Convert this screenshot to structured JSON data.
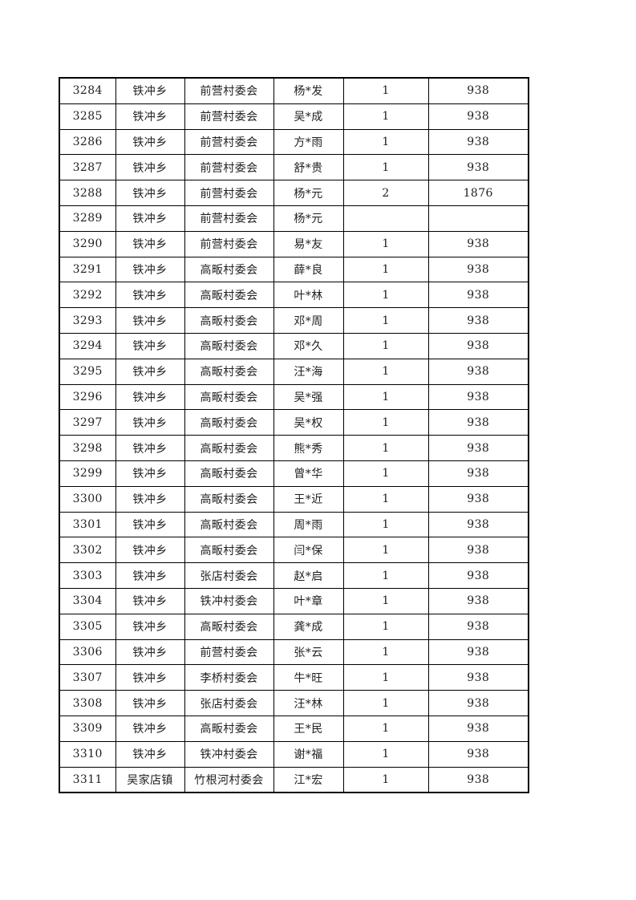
{
  "colors": {
    "page_background": "#ffffff",
    "table_border": "#000000",
    "table_text": "#1f1f1f"
  },
  "table": {
    "rows": [
      [
        "3284",
        "铁冲乡",
        "前营村委会",
        "杨*发",
        "1",
        "938"
      ],
      [
        "3285",
        "铁冲乡",
        "前营村委会",
        "吴*成",
        "1",
        "938"
      ],
      [
        "3286",
        "铁冲乡",
        "前营村委会",
        "方*雨",
        "1",
        "938"
      ],
      [
        "3287",
        "铁冲乡",
        "前营村委会",
        "舒*贵",
        "1",
        "938"
      ],
      [
        "3288",
        "铁冲乡",
        "前营村委会",
        "杨*元",
        "2",
        "1876"
      ],
      [
        "3289",
        "铁冲乡",
        "前营村委会",
        "杨*元",
        "",
        ""
      ],
      [
        "3290",
        "铁冲乡",
        "前营村委会",
        "易*友",
        "1",
        "938"
      ],
      [
        "3291",
        "铁冲乡",
        "高畈村委会",
        "薛*良",
        "1",
        "938"
      ],
      [
        "3292",
        "铁冲乡",
        "高畈村委会",
        "叶*林",
        "1",
        "938"
      ],
      [
        "3293",
        "铁冲乡",
        "高畈村委会",
        "邓*周",
        "1",
        "938"
      ],
      [
        "3294",
        "铁冲乡",
        "高畈村委会",
        "邓*久",
        "1",
        "938"
      ],
      [
        "3295",
        "铁冲乡",
        "高畈村委会",
        "汪*海",
        "1",
        "938"
      ],
      [
        "3296",
        "铁冲乡",
        "高畈村委会",
        "吴*强",
        "1",
        "938"
      ],
      [
        "3297",
        "铁冲乡",
        "高畈村委会",
        "吴*权",
        "1",
        "938"
      ],
      [
        "3298",
        "铁冲乡",
        "高畈村委会",
        "熊*秀",
        "1",
        "938"
      ],
      [
        "3299",
        "铁冲乡",
        "高畈村委会",
        "曾*华",
        "1",
        "938"
      ],
      [
        "3300",
        "铁冲乡",
        "高畈村委会",
        "王*近",
        "1",
        "938"
      ],
      [
        "3301",
        "铁冲乡",
        "高畈村委会",
        "周*雨",
        "1",
        "938"
      ],
      [
        "3302",
        "铁冲乡",
        "高畈村委会",
        "闫*保",
        "1",
        "938"
      ],
      [
        "3303",
        "铁冲乡",
        "张店村委会",
        "赵*启",
        "1",
        "938"
      ],
      [
        "3304",
        "铁冲乡",
        "铁冲村委会",
        "叶*章",
        "1",
        "938"
      ],
      [
        "3305",
        "铁冲乡",
        "高畈村委会",
        "龚*成",
        "1",
        "938"
      ],
      [
        "3306",
        "铁冲乡",
        "前营村委会",
        "张*云",
        "1",
        "938"
      ],
      [
        "3307",
        "铁冲乡",
        "李桥村委会",
        "牛*旺",
        "1",
        "938"
      ],
      [
        "3308",
        "铁冲乡",
        "张店村委会",
        "汪*林",
        "1",
        "938"
      ],
      [
        "3309",
        "铁冲乡",
        "高畈村委会",
        "王*民",
        "1",
        "938"
      ],
      [
        "3310",
        "铁冲乡",
        "铁冲村委会",
        "谢*福",
        "1",
        "938"
      ],
      [
        "3311",
        "吴家店镇",
        "竹根河村委会",
        "江*宏",
        "1",
        "938"
      ]
    ]
  }
}
